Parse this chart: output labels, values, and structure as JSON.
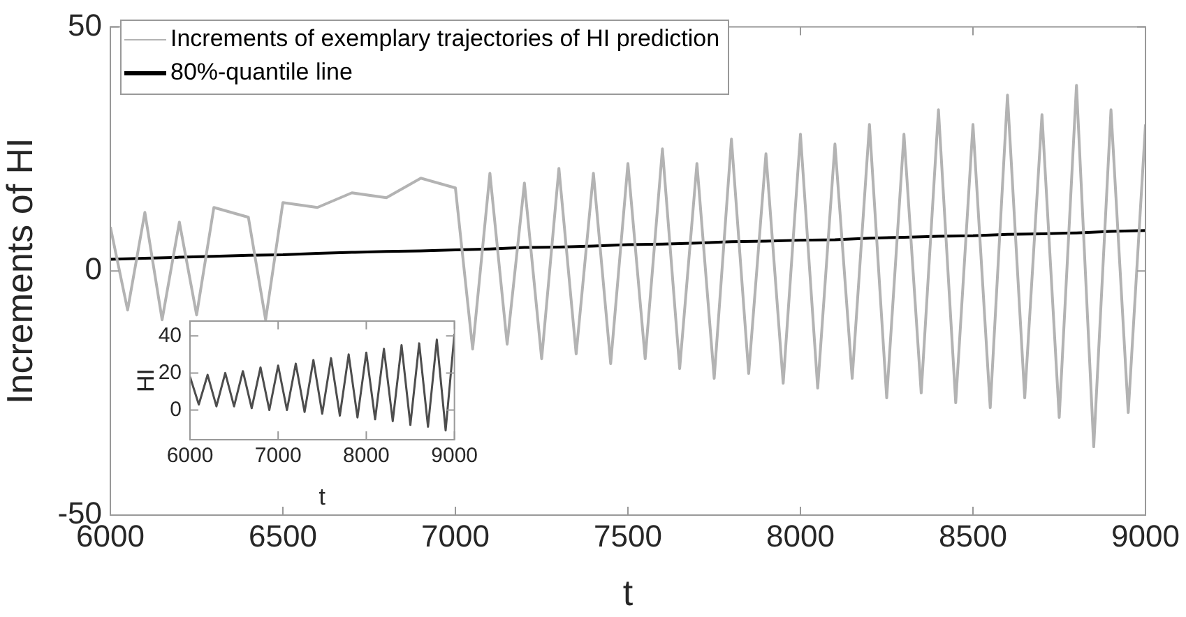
{
  "chart_data": [
    {
      "type": "line",
      "xlabel": "t",
      "ylabel": "Increments of HI",
      "xlim": [
        6000,
        9000
      ],
      "xticks": [
        6000,
        6500,
        7000,
        7500,
        8000,
        8500,
        9000
      ],
      "ylim": [
        -50,
        50
      ],
      "yticks": [
        -50,
        0,
        50
      ],
      "legend": "top left",
      "series": [
        {
          "name": "Increments of exemplary trajectories of HI prediction",
          "color": "#b3b3b3",
          "x": [
            6000,
            6050,
            6100,
            6150,
            6200,
            6250,
            6300,
            6350,
            6400,
            6450,
            6500,
            6550,
            6600,
            6650,
            6700,
            6750,
            6800,
            6850,
            6900,
            6950,
            7000,
            7050,
            7100,
            7150,
            7200,
            7250,
            7300,
            7350,
            7400,
            7450,
            7500,
            7550,
            7600,
            7650,
            7700,
            7750,
            7800,
            7850,
            7900,
            7950,
            8000,
            8050,
            8100,
            8150,
            8200,
            8250,
            8300,
            8350,
            8400,
            8450,
            8500,
            8550,
            8600,
            8650,
            8700,
            8750,
            8800,
            8850,
            8900,
            8950,
            9000
          ],
          "values": [
            9,
            -8,
            12,
            -10,
            10,
            -9,
            13,
            null,
            11,
            -10,
            14,
            null,
            13,
            null,
            16,
            null,
            15,
            null,
            19,
            null,
            17,
            -16,
            20,
            -15,
            18,
            -18,
            21,
            -17,
            20,
            -19,
            22,
            -18,
            25,
            -20,
            22,
            -22,
            27,
            -21,
            24,
            -23,
            28,
            -24,
            26,
            -22,
            30,
            -26,
            28,
            -25,
            33,
            -27,
            30,
            -28,
            36,
            -26,
            32,
            -30,
            38,
            -36,
            33,
            -29,
            30
          ]
        },
        {
          "name": "80%-quantile line",
          "color": "#000000",
          "x": [
            6000,
            6100,
            6200,
            6300,
            6400,
            6500,
            6600,
            6700,
            6800,
            6900,
            7000,
            7100,
            7200,
            7300,
            7400,
            7500,
            7600,
            7700,
            7800,
            7900,
            8000,
            8100,
            8200,
            8300,
            8400,
            8500,
            8600,
            8700,
            8800,
            8900,
            9000
          ],
          "values": [
            2.4,
            2.6,
            2.8,
            3.0,
            3.2,
            3.3,
            3.6,
            3.8,
            4.0,
            4.1,
            4.3,
            4.5,
            4.8,
            4.9,
            5.1,
            5.4,
            5.5,
            5.7,
            6.0,
            6.1,
            6.3,
            6.4,
            6.7,
            6.9,
            7.1,
            7.2,
            7.5,
            7.6,
            7.8,
            8.1,
            8.3
          ]
        }
      ]
    },
    {
      "type": "line",
      "xlabel": "t",
      "ylabel": "HI",
      "xlim": [
        6000,
        9000
      ],
      "xticks": [
        6000,
        7000,
        8000,
        9000
      ],
      "ylim": [
        -16,
        48
      ],
      "yticks": [
        0,
        20,
        40
      ],
      "series": [
        {
          "color": "#4d4d4d",
          "x": [
            6000,
            6100,
            6200,
            6300,
            6400,
            6500,
            6600,
            6700,
            6800,
            6900,
            7000,
            7100,
            7200,
            7300,
            7400,
            7500,
            7600,
            7700,
            7800,
            7900,
            8000,
            8100,
            8200,
            8300,
            8400,
            8500,
            8600,
            8700,
            8800,
            8900,
            9000
          ],
          "values": [
            18,
            3,
            19,
            2,
            20,
            2,
            21,
            1,
            23,
            0,
            24,
            0,
            25,
            -1,
            27,
            -2,
            28,
            -3,
            30,
            -4,
            31,
            -5,
            33,
            -6,
            35,
            -8,
            36,
            -9,
            38,
            -11,
            41
          ]
        }
      ]
    }
  ]
}
